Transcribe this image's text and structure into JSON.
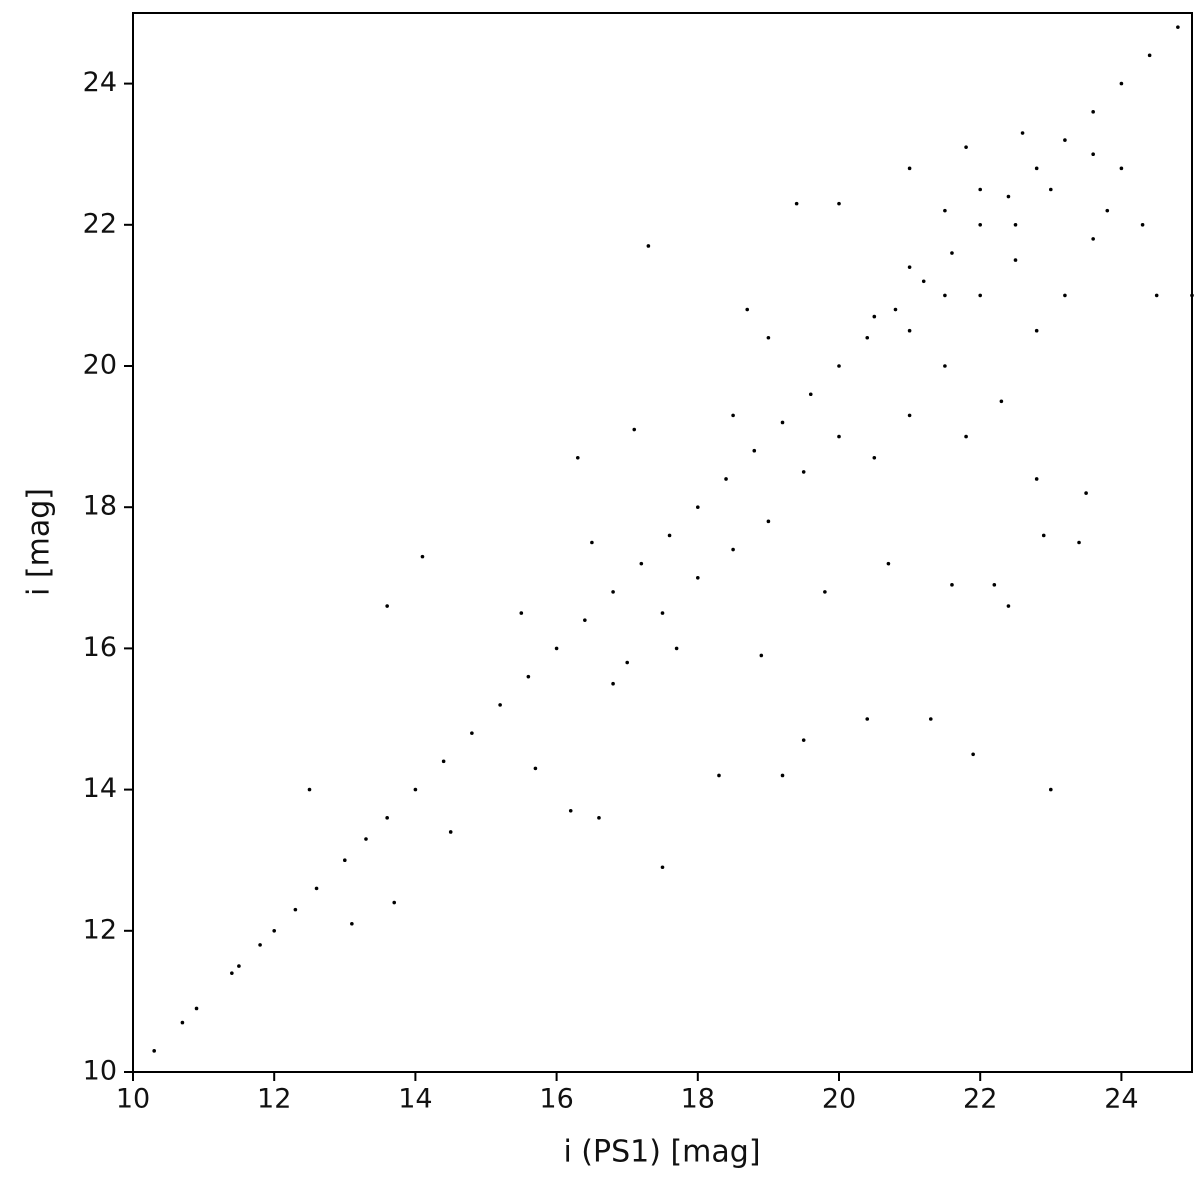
{
  "chart_data": {
    "type": "scatter",
    "xlabel": "i (PS1)  [mag]",
    "ylabel": "i [mag]",
    "xlim": [
      10,
      25
    ],
    "ylim": [
      10,
      25
    ],
    "xticks": [
      10,
      12,
      14,
      16,
      18,
      20,
      22,
      24
    ],
    "yticks": [
      10,
      12,
      14,
      16,
      18,
      20,
      22,
      24
    ],
    "color": "#000000",
    "x": [
      10.3,
      10.7,
      10.9,
      11.4,
      11.5,
      11.8,
      12.0,
      12.3,
      12.6,
      13.0,
      13.3,
      13.6,
      14.0,
      14.4,
      14.8,
      15.2,
      15.6,
      16.0,
      16.4,
      16.8,
      17.2,
      17.6,
      18.0,
      18.4,
      18.8,
      19.2,
      19.6,
      20.0,
      20.4,
      20.8,
      21.2,
      21.6,
      22.0,
      22.4,
      22.8,
      23.2,
      23.6,
      24.0,
      24.4,
      24.8,
      12.5,
      13.1,
      13.6,
      13.7,
      14.1,
      14.5,
      15.7,
      16.2,
      16.6,
      17.3,
      17.5,
      17.1,
      16.3,
      18.3,
      19.2,
      19.4,
      19.5,
      20.4,
      21.3,
      21.9,
      23.0,
      22.9,
      23.4,
      21.6,
      22.2,
      22.4,
      20.0,
      21.0,
      21.8,
      22.6,
      24.3,
      24.5,
      25.0,
      23.8,
      23.6,
      23.2,
      22.8,
      22.3,
      21.8,
      21.5,
      21.0,
      20.5,
      20.0,
      19.5,
      19.0,
      18.5,
      18.0,
      17.5,
      17.0,
      16.8,
      22.0,
      22.5,
      21.5,
      22.0,
      21.5,
      22.5,
      23.0,
      21.0,
      20.5,
      21.0,
      22.8,
      23.5,
      18.7,
      19.0,
      18.5,
      24.0,
      23.6,
      20.7,
      19.8,
      18.9,
      17.7,
      16.5,
      15.5
    ],
    "values": [
      10.3,
      10.7,
      10.9,
      11.4,
      11.5,
      11.8,
      12.0,
      12.3,
      12.6,
      13.0,
      13.3,
      13.6,
      14.0,
      14.4,
      14.8,
      15.2,
      15.6,
      16.0,
      16.4,
      16.8,
      17.2,
      17.6,
      18.0,
      18.4,
      18.8,
      19.2,
      19.6,
      20.0,
      20.4,
      20.8,
      21.2,
      21.6,
      22.0,
      22.4,
      22.8,
      23.2,
      23.6,
      24.0,
      24.4,
      24.8,
      14.0,
      12.1,
      16.6,
      12.4,
      17.3,
      13.4,
      14.3,
      13.7,
      13.6,
      21.7,
      12.9,
      19.1,
      18.7,
      14.2,
      14.2,
      22.3,
      14.7,
      15.0,
      15.0,
      14.5,
      14.0,
      17.6,
      17.5,
      16.9,
      16.9,
      16.6,
      22.3,
      22.8,
      23.1,
      23.3,
      22.0,
      21.0,
      21.0,
      22.2,
      21.8,
      21.0,
      20.5,
      19.5,
      19.0,
      20.0,
      19.3,
      18.7,
      19.0,
      18.5,
      17.8,
      17.4,
      17.0,
      16.5,
      15.8,
      15.5,
      21.0,
      21.5,
      21.0,
      22.5,
      22.2,
      22.0,
      22.5,
      20.5,
      20.7,
      21.4,
      18.4,
      18.2,
      20.8,
      20.4,
      19.3,
      22.8,
      23.0,
      17.2,
      16.8,
      15.9,
      16.0,
      17.5,
      16.5
    ]
  }
}
